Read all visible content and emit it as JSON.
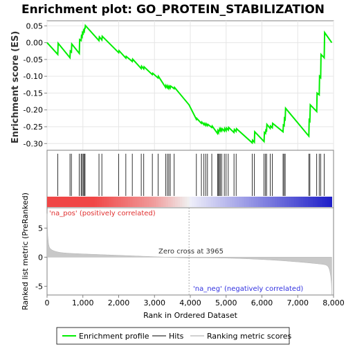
{
  "chart_data": {
    "type": "line",
    "title": "Enrichment plot: GO_PROTEIN_STABILIZATION",
    "es_ylabel": "Enrichment score (ES)",
    "rank_ylabel": "Ranked list metric (PreRanked)",
    "xlabel": "Rank in Ordered Dataset",
    "xlim": [
      0,
      8000
    ],
    "x_ticks": [
      "0",
      "1,000",
      "2,000",
      "3,000",
      "4,000",
      "5,000",
      "6,000",
      "7,000",
      "8,000"
    ],
    "x_tick_values": [
      0,
      1000,
      2000,
      3000,
      4000,
      5000,
      6000,
      7000,
      8000
    ],
    "es_ylim": [
      -0.32,
      0.065
    ],
    "es_ticks": [
      "0.05",
      "0.00",
      "-0.05",
      "-0.10",
      "-0.15",
      "-0.20",
      "-0.25",
      "-0.30"
    ],
    "es_tick_values": [
      0.05,
      0.0,
      -0.05,
      -0.1,
      -0.15,
      -0.2,
      -0.25,
      -0.3
    ],
    "rank_ylim": [
      -6.5,
      8.5
    ],
    "rank_ticks": [
      "5",
      "0",
      "-5"
    ],
    "rank_tick_values": [
      5,
      0,
      -5
    ],
    "zero_cross_label": "Zero cross at 3965",
    "zero_cross": 3965,
    "pos_label": "'na_pos' (positively correlated)",
    "neg_label": "'na_neg' (negatively correlated)",
    "n_genes": 7950,
    "hits": [
      300,
      640,
      680,
      900,
      950,
      980,
      1010,
      1040,
      1060,
      1450,
      1530,
      2000,
      2200,
      2380,
      2630,
      2700,
      2940,
      3100,
      3310,
      3360,
      3400,
      3440,
      3550,
      4170,
      4310,
      4380,
      4430,
      4480,
      4600,
      4760,
      4790,
      4810,
      4840,
      4880,
      4950,
      5000,
      5060,
      5220,
      5280,
      5730,
      5790,
      6060,
      6100,
      6130,
      6230,
      6290,
      6590,
      6620,
      6650,
      7310,
      7340,
      7530,
      7600,
      7640,
      7740
    ],
    "es_points": [
      [
        0,
        0.0
      ],
      [
        300,
        -0.035
      ],
      [
        310,
        -0.002
      ],
      [
        640,
        -0.045
      ],
      [
        650,
        -0.025
      ],
      [
        680,
        -0.028
      ],
      [
        690,
        -0.004
      ],
      [
        900,
        -0.032
      ],
      [
        910,
        0.009
      ],
      [
        950,
        0.006
      ],
      [
        960,
        0.02
      ],
      [
        980,
        0.017
      ],
      [
        990,
        0.03
      ],
      [
        1010,
        0.027
      ],
      [
        1020,
        0.036
      ],
      [
        1040,
        0.033
      ],
      [
        1050,
        0.044
      ],
      [
        1060,
        0.041
      ],
      [
        1070,
        0.051
      ],
      [
        1450,
        0.006
      ],
      [
        1460,
        0.017
      ],
      [
        1530,
        0.008
      ],
      [
        1540,
        0.019
      ],
      [
        2000,
        -0.03
      ],
      [
        2010,
        -0.024
      ],
      [
        2200,
        -0.046
      ],
      [
        2210,
        -0.041
      ],
      [
        2380,
        -0.056
      ],
      [
        2390,
        -0.049
      ],
      [
        2630,
        -0.077
      ],
      [
        2640,
        -0.07
      ],
      [
        2700,
        -0.078
      ],
      [
        2710,
        -0.072
      ],
      [
        2940,
        -0.095
      ],
      [
        2950,
        -0.091
      ],
      [
        3100,
        -0.105
      ],
      [
        3110,
        -0.1
      ],
      [
        3310,
        -0.133
      ],
      [
        3320,
        -0.127
      ],
      [
        3360,
        -0.134
      ],
      [
        3370,
        -0.129
      ],
      [
        3400,
        -0.136
      ],
      [
        3410,
        -0.13
      ],
      [
        3440,
        -0.135
      ],
      [
        3450,
        -0.129
      ],
      [
        3550,
        -0.137
      ],
      [
        3560,
        -0.133
      ],
      [
        3965,
        -0.185
      ],
      [
        4170,
        -0.228
      ],
      [
        4180,
        -0.225
      ],
      [
        4310,
        -0.24
      ],
      [
        4320,
        -0.236
      ],
      [
        4380,
        -0.244
      ],
      [
        4390,
        -0.24
      ],
      [
        4430,
        -0.246
      ],
      [
        4440,
        -0.241
      ],
      [
        4480,
        -0.247
      ],
      [
        4490,
        -0.243
      ],
      [
        4600,
        -0.252
      ],
      [
        4610,
        -0.248
      ],
      [
        4760,
        -0.27
      ],
      [
        4770,
        -0.262
      ],
      [
        4790,
        -0.267
      ],
      [
        4800,
        -0.259
      ],
      [
        4810,
        -0.264
      ],
      [
        4820,
        -0.257
      ],
      [
        4840,
        -0.262
      ],
      [
        4850,
        -0.256
      ],
      [
        4880,
        -0.262
      ],
      [
        4890,
        -0.256
      ],
      [
        4950,
        -0.263
      ],
      [
        4960,
        -0.255
      ],
      [
        5000,
        -0.262
      ],
      [
        5010,
        -0.254
      ],
      [
        5060,
        -0.26
      ],
      [
        5070,
        -0.252
      ],
      [
        5220,
        -0.267
      ],
      [
        5230,
        -0.258
      ],
      [
        5280,
        -0.264
      ],
      [
        5290,
        -0.256
      ],
      [
        5730,
        -0.298
      ],
      [
        5740,
        -0.29
      ],
      [
        5790,
        -0.296
      ],
      [
        5800,
        -0.265
      ],
      [
        6060,
        -0.294
      ],
      [
        6070,
        -0.267
      ],
      [
        6100,
        -0.27
      ],
      [
        6110,
        -0.26
      ],
      [
        6130,
        -0.262
      ],
      [
        6140,
        -0.243
      ],
      [
        6230,
        -0.255
      ],
      [
        6240,
        -0.248
      ],
      [
        6290,
        -0.253
      ],
      [
        6300,
        -0.24
      ],
      [
        6590,
        -0.265
      ],
      [
        6600,
        -0.245
      ],
      [
        6620,
        -0.247
      ],
      [
        6630,
        -0.225
      ],
      [
        6650,
        -0.228
      ],
      [
        6660,
        -0.195
      ],
      [
        7310,
        -0.278
      ],
      [
        7320,
        -0.23
      ],
      [
        7340,
        -0.233
      ],
      [
        7350,
        -0.185
      ],
      [
        7530,
        -0.205
      ],
      [
        7540,
        -0.15
      ],
      [
        7600,
        -0.155
      ],
      [
        7610,
        -0.1
      ],
      [
        7640,
        -0.104
      ],
      [
        7650,
        -0.035
      ],
      [
        7740,
        -0.045
      ],
      [
        7750,
        0.03
      ],
      [
        7950,
        0.0
      ]
    ]
  }
}
